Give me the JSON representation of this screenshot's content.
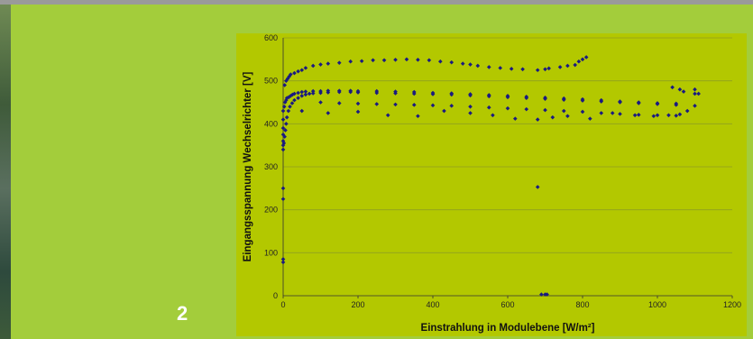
{
  "slide": {
    "page_number": "2",
    "background_color": "#a3cd3b",
    "plot_background_color": "#b3c800"
  },
  "chart_data": {
    "type": "scatter",
    "title": "",
    "xlabel": "Einstrahlung in Modulebene [W/m²]",
    "ylabel": "Eingangsspannung Wechselrichter [V]",
    "xlim": [
      0,
      1200
    ],
    "ylim": [
      0,
      600
    ],
    "x_ticks": [
      "0",
      "200",
      "400",
      "600",
      "800",
      "1000",
      "1200"
    ],
    "y_ticks": [
      "0",
      "100",
      "200",
      "300",
      "400",
      "500",
      "600"
    ],
    "grid": "horizontal",
    "legend": "none",
    "marker_color": "#1a1a80",
    "marker": "diamond",
    "series": [
      {
        "x": [
          0,
          0,
          0,
          0,
          0,
          0,
          3,
          5,
          8,
          10,
          15,
          20,
          25,
          30,
          40,
          50,
          60,
          80,
          100,
          120,
          150,
          180,
          200,
          250,
          300,
          350,
          400,
          450,
          500,
          550,
          600,
          650,
          700,
          750,
          800,
          850,
          900,
          950,
          1000,
          1050,
          1100,
          0,
          2,
          4,
          6,
          8,
          10,
          14,
          18,
          24,
          30,
          40,
          50,
          60,
          70,
          80,
          100,
          120,
          150,
          180,
          200,
          250,
          300,
          350,
          400,
          450,
          500,
          550,
          600,
          650,
          700,
          750,
          800,
          850,
          900,
          950,
          1000,
          1050,
          1100,
          100,
          150,
          200,
          250,
          300,
          350,
          400,
          450,
          500,
          550,
          600,
          650,
          700,
          750,
          800,
          850,
          900,
          950,
          1000,
          1050,
          4,
          8,
          12,
          16,
          20,
          30,
          40,
          50,
          60,
          80,
          100,
          120,
          150,
          180,
          210,
          240,
          270,
          300,
          330,
          360,
          390,
          420,
          450,
          480,
          500,
          520,
          550,
          580,
          610,
          640,
          680,
          700,
          710,
          740,
          760,
          780,
          790,
          800,
          810,
          0,
          0,
          0,
          0,
          680,
          690,
          700,
          705,
          50,
          120,
          200,
          280,
          360,
          430,
          500,
          560,
          620,
          680,
          720,
          760,
          820,
          880,
          940,
          990,
          1030,
          1060,
          1080,
          1100,
          1110,
          1040,
          1060,
          1070
        ],
        "y": [
          350,
          360,
          375,
          390,
          410,
          430,
          440,
          450,
          455,
          460,
          462,
          465,
          468,
          470,
          472,
          474,
          475,
          476,
          476,
          477,
          477,
          477,
          476,
          476,
          475,
          474,
          472,
          471,
          469,
          467,
          465,
          463,
          461,
          459,
          457,
          455,
          452,
          450,
          448,
          447,
          470,
          340,
          355,
          370,
          385,
          400,
          415,
          430,
          440,
          448,
          455,
          460,
          465,
          468,
          470,
          471,
          472,
          473,
          474,
          474,
          473,
          472,
          471,
          470,
          469,
          468,
          466,
          464,
          462,
          460,
          458,
          456,
          454,
          452,
          450,
          448,
          446,
          444,
          442,
          450,
          448,
          447,
          446,
          445,
          444,
          443,
          442,
          440,
          438,
          436,
          434,
          432,
          430,
          428,
          425,
          423,
          421,
          420,
          419,
          490,
          500,
          505,
          510,
          515,
          518,
          522,
          525,
          530,
          535,
          538,
          540,
          542,
          545,
          546,
          548,
          548,
          549,
          550,
          549,
          548,
          545,
          543,
          540,
          538,
          535,
          532,
          530,
          528,
          527,
          525,
          527,
          529,
          532,
          535,
          537,
          545,
          550,
          555,
          250,
          225,
          85,
          78,
          253,
          3,
          3,
          3,
          430,
          425,
          428,
          420,
          418,
          430,
          425,
          420,
          412,
          410,
          415,
          418,
          412,
          425,
          420,
          418,
          420,
          422,
          430,
          480,
          470,
          485,
          480,
          475
        ]
      }
    ]
  }
}
